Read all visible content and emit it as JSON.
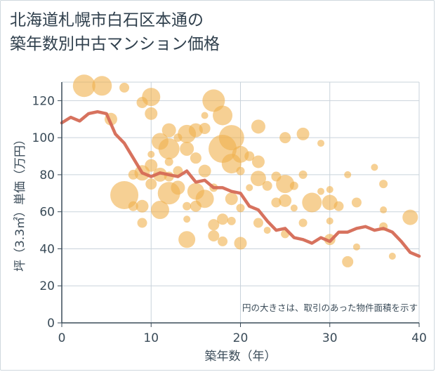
{
  "title_line1": "北海道札幌市白石区本通の",
  "title_line2": "築年数別中古マンション価格",
  "chart_data": {
    "type": "scatter",
    "xlabel": "築年数（年）",
    "ylabel": "坪（3.3㎡）単価（万円）",
    "xlim": [
      0,
      40
    ],
    "ylim": [
      0,
      130
    ],
    "xticks": [
      0,
      10,
      20,
      30,
      40
    ],
    "yticks": [
      0,
      20,
      40,
      60,
      80,
      100,
      120
    ],
    "grid": true,
    "note": "円の大きさは、取引のあった物件面積を示す",
    "colors": {
      "bubble": "#f0b04c",
      "line": "#d56a55",
      "grid": "#c9d3db",
      "axis": "#3a4b58"
    },
    "line": {
      "x": [
        0,
        1,
        2,
        3,
        4,
        5,
        6,
        7,
        8,
        9,
        10,
        11,
        12,
        13,
        14,
        15,
        16,
        17,
        18,
        19,
        20,
        21,
        22,
        23,
        24,
        25,
        26,
        27,
        28,
        29,
        30,
        31,
        32,
        33,
        34,
        35,
        36,
        37,
        38,
        39,
        40
      ],
      "y": [
        108,
        111,
        109,
        113,
        114,
        113,
        102,
        97,
        89,
        81,
        79,
        81,
        80,
        79,
        82,
        76,
        77,
        73,
        73,
        71,
        70,
        63,
        61,
        55,
        50,
        51,
        46,
        45,
        43,
        46,
        44,
        49,
        49,
        51,
        52,
        50,
        51,
        49,
        44,
        38,
        36
      ]
    },
    "points": [
      {
        "x": 2.5,
        "y": 128,
        "s": 16
      },
      {
        "x": 4.5,
        "y": 128,
        "s": 14
      },
      {
        "x": 7,
        "y": 127,
        "s": 7
      },
      {
        "x": 10,
        "y": 122,
        "s": 13
      },
      {
        "x": 9,
        "y": 119,
        "s": 8
      },
      {
        "x": 10,
        "y": 113,
        "s": 9
      },
      {
        "x": 5.5,
        "y": 110,
        "s": 9
      },
      {
        "x": 17,
        "y": 120,
        "s": 16
      },
      {
        "x": 18,
        "y": 112,
        "s": 14
      },
      {
        "x": 16,
        "y": 112,
        "s": 5
      },
      {
        "x": 12,
        "y": 104,
        "s": 10
      },
      {
        "x": 13,
        "y": 100,
        "s": 6
      },
      {
        "x": 14,
        "y": 102,
        "s": 13
      },
      {
        "x": 15,
        "y": 104,
        "s": 10
      },
      {
        "x": 16,
        "y": 105,
        "s": 8
      },
      {
        "x": 19,
        "y": 100,
        "s": 18
      },
      {
        "x": 22,
        "y": 106,
        "s": 10
      },
      {
        "x": 25,
        "y": 100,
        "s": 8
      },
      {
        "x": 27,
        "y": 102,
        "s": 9
      },
      {
        "x": 29,
        "y": 97,
        "s": 5
      },
      {
        "x": 11,
        "y": 98,
        "s": 12
      },
      {
        "x": 12,
        "y": 94,
        "s": 15
      },
      {
        "x": 14,
        "y": 94,
        "s": 10
      },
      {
        "x": 18,
        "y": 94,
        "s": 20
      },
      {
        "x": 20,
        "y": 91,
        "s": 12
      },
      {
        "x": 21,
        "y": 90,
        "s": 7
      },
      {
        "x": 10,
        "y": 91,
        "s": 5
      },
      {
        "x": 10,
        "y": 85,
        "s": 9
      },
      {
        "x": 12,
        "y": 87,
        "s": 6
      },
      {
        "x": 15,
        "y": 89,
        "s": 8
      },
      {
        "x": 19,
        "y": 86,
        "s": 14
      },
      {
        "x": 22,
        "y": 87,
        "s": 9
      },
      {
        "x": 9,
        "y": 81,
        "s": 11
      },
      {
        "x": 8,
        "y": 80,
        "s": 7
      },
      {
        "x": 11,
        "y": 80,
        "s": 10
      },
      {
        "x": 13,
        "y": 82,
        "s": 7
      },
      {
        "x": 16,
        "y": 82,
        "s": 9
      },
      {
        "x": 20,
        "y": 82,
        "s": 6
      },
      {
        "x": 22,
        "y": 78,
        "s": 11
      },
      {
        "x": 24,
        "y": 79,
        "s": 7
      },
      {
        "x": 27,
        "y": 80,
        "s": 6
      },
      {
        "x": 32,
        "y": 80,
        "s": 5
      },
      {
        "x": 35,
        "y": 84,
        "s": 5
      },
      {
        "x": 7,
        "y": 69,
        "s": 20
      },
      {
        "x": 10,
        "y": 75,
        "s": 8
      },
      {
        "x": 12,
        "y": 70,
        "s": 16
      },
      {
        "x": 13,
        "y": 73,
        "s": 10
      },
      {
        "x": 15,
        "y": 71,
        "s": 12
      },
      {
        "x": 16,
        "y": 67,
        "s": 13
      },
      {
        "x": 17,
        "y": 73,
        "s": 6
      },
      {
        "x": 19,
        "y": 67,
        "s": 9
      },
      {
        "x": 23,
        "y": 74,
        "s": 7
      },
      {
        "x": 25,
        "y": 75,
        "s": 13
      },
      {
        "x": 26,
        "y": 74,
        "s": 6
      },
      {
        "x": 29,
        "y": 71,
        "s": 5
      },
      {
        "x": 30,
        "y": 72,
        "s": 5
      },
      {
        "x": 36,
        "y": 75,
        "s": 6
      },
      {
        "x": 8,
        "y": 63,
        "s": 7
      },
      {
        "x": 9,
        "y": 63,
        "s": 9
      },
      {
        "x": 11,
        "y": 61,
        "s": 13
      },
      {
        "x": 14,
        "y": 63,
        "s": 6
      },
      {
        "x": 15,
        "y": 63,
        "s": 8
      },
      {
        "x": 20,
        "y": 62,
        "s": 6
      },
      {
        "x": 24,
        "y": 65,
        "s": 7
      },
      {
        "x": 25,
        "y": 66,
        "s": 9
      },
      {
        "x": 28,
        "y": 65,
        "s": 14
      },
      {
        "x": 30,
        "y": 65,
        "s": 11
      },
      {
        "x": 31,
        "y": 63,
        "s": 7
      },
      {
        "x": 33,
        "y": 65,
        "s": 7
      },
      {
        "x": 9,
        "y": 54,
        "s": 7
      },
      {
        "x": 14,
        "y": 56,
        "s": 5
      },
      {
        "x": 17,
        "y": 53,
        "s": 8
      },
      {
        "x": 18,
        "y": 56,
        "s": 8
      },
      {
        "x": 19,
        "y": 55,
        "s": 6
      },
      {
        "x": 22,
        "y": 54,
        "s": 7
      },
      {
        "x": 23,
        "y": 50,
        "s": 5
      },
      {
        "x": 27,
        "y": 54,
        "s": 6
      },
      {
        "x": 30,
        "y": 55,
        "s": 5
      },
      {
        "x": 36,
        "y": 61,
        "s": 5
      },
      {
        "x": 39,
        "y": 57,
        "s": 11
      },
      {
        "x": 14,
        "y": 45,
        "s": 12
      },
      {
        "x": 17,
        "y": 47,
        "s": 8
      },
      {
        "x": 18,
        "y": 44,
        "s": 7
      },
      {
        "x": 20,
        "y": 43,
        "s": 9
      },
      {
        "x": 25,
        "y": 48,
        "s": 6
      },
      {
        "x": 30,
        "y": 45,
        "s": 8
      },
      {
        "x": 33,
        "y": 41,
        "s": 5
      },
      {
        "x": 32,
        "y": 33,
        "s": 8
      },
      {
        "x": 37,
        "y": 36,
        "s": 5
      },
      {
        "x": 36,
        "y": 52,
        "s": 6
      },
      {
        "x": 12,
        "y": 79,
        "s": 7
      },
      {
        "x": 26,
        "y": 62,
        "s": 5
      },
      {
        "x": 21,
        "y": 73,
        "s": 5
      }
    ]
  }
}
